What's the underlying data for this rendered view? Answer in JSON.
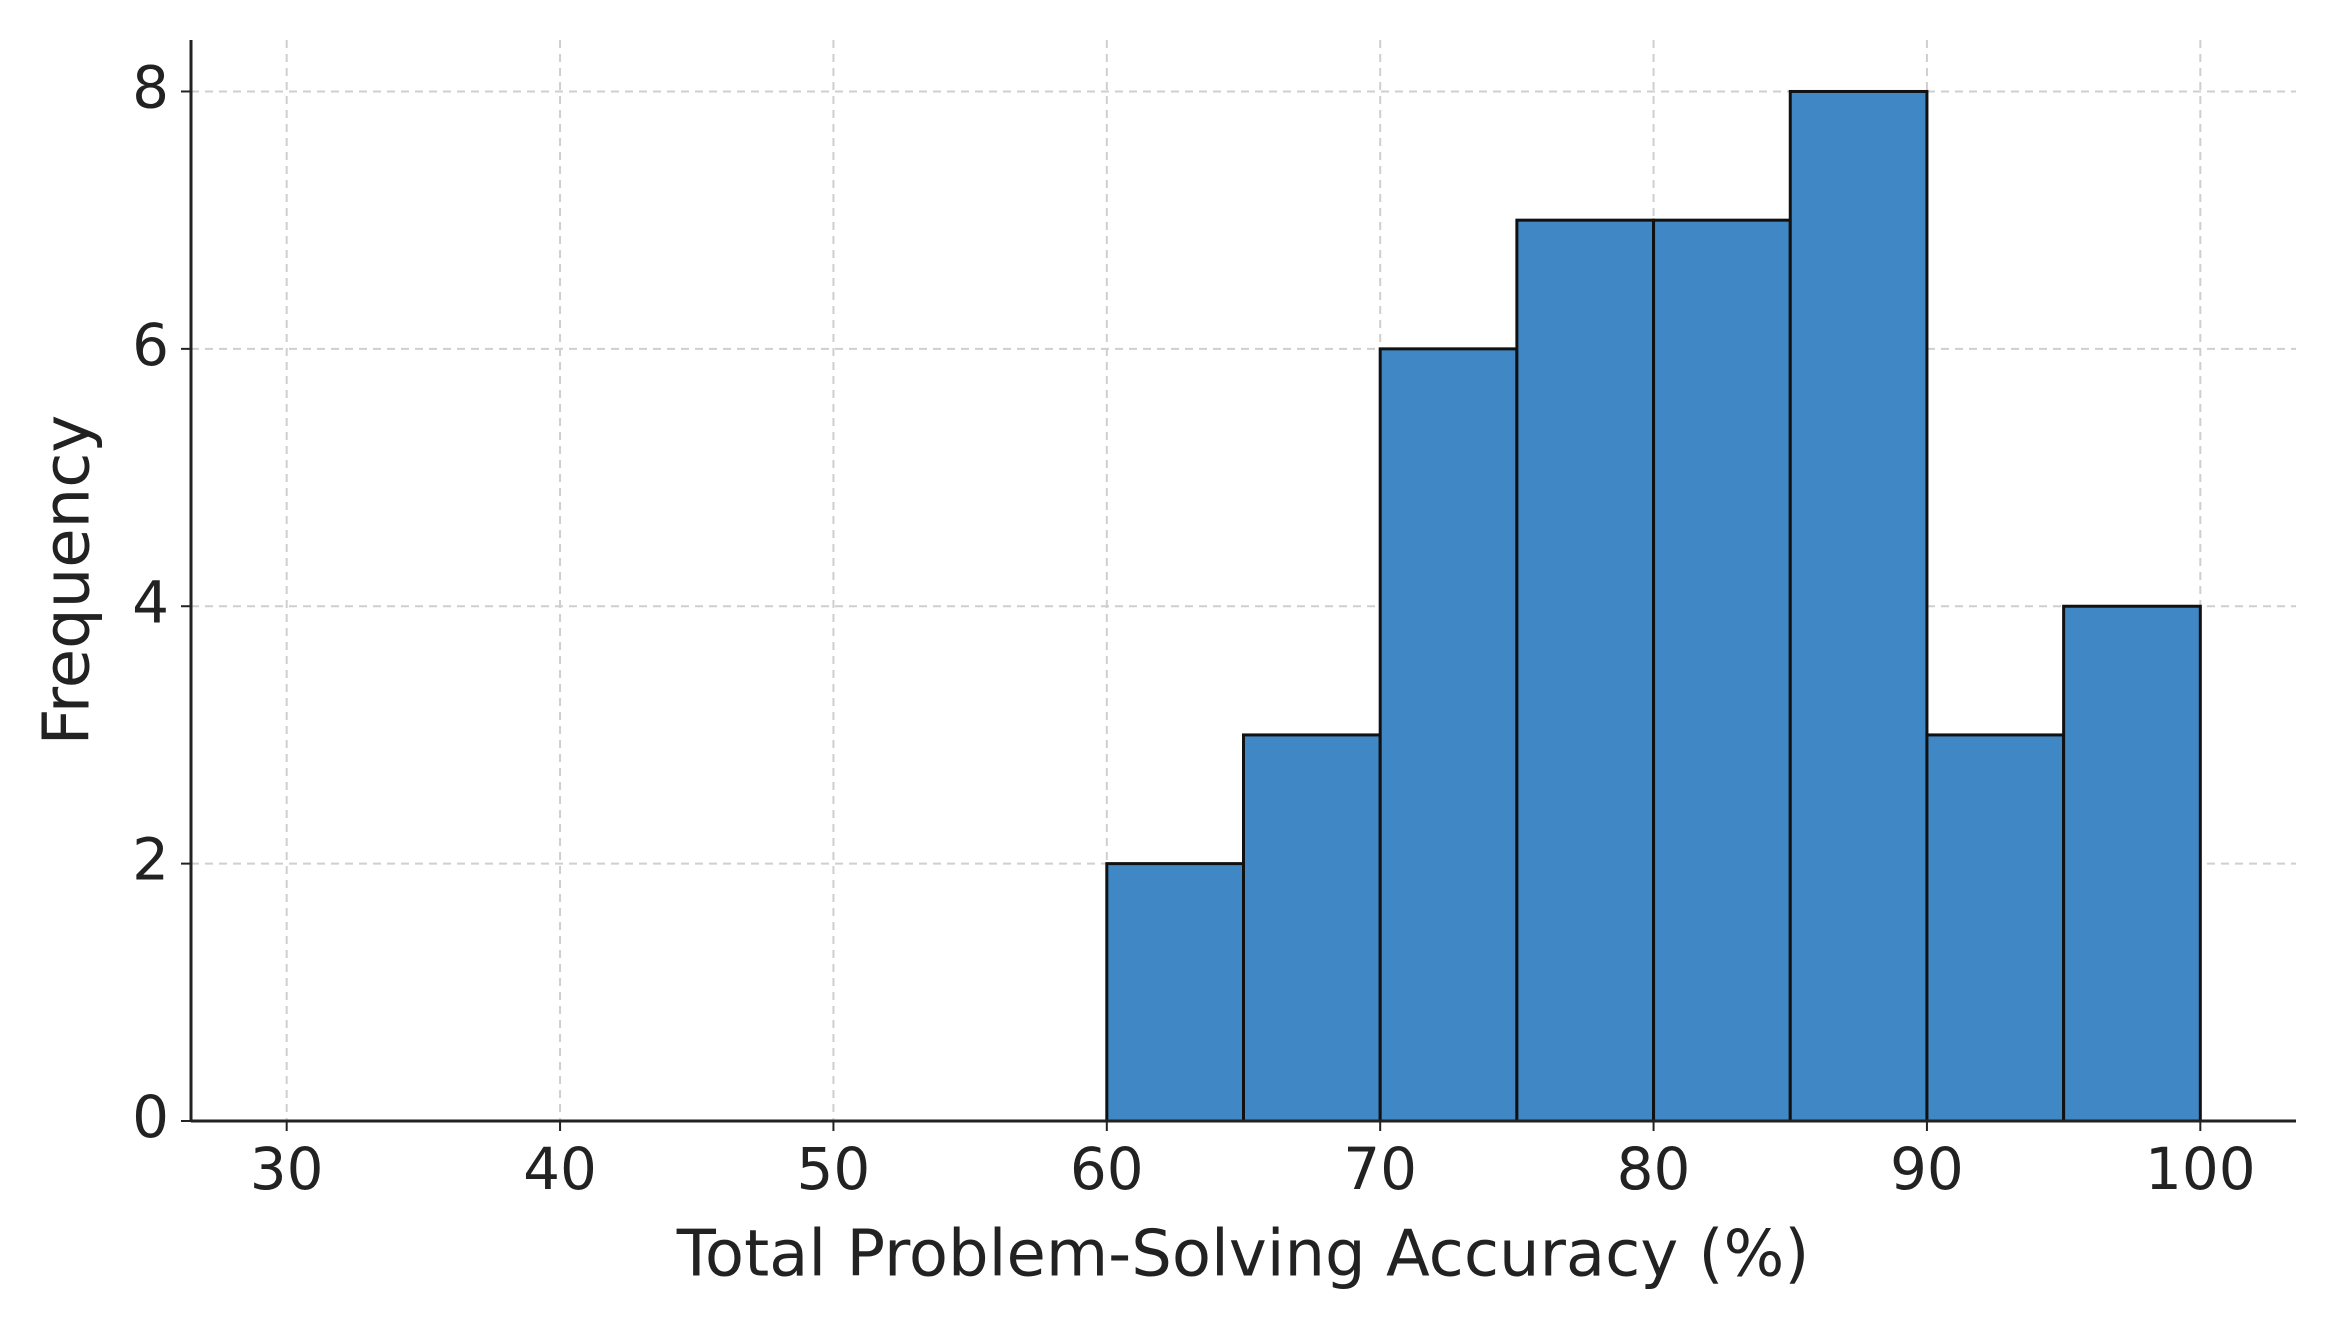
{
  "chart_data": {
    "type": "histogram",
    "x_label": "Total Problem-Solving Accuracy (%)",
    "y_label": "Frequency",
    "bins": [
      60,
      65,
      70,
      75,
      80,
      85,
      90,
      95,
      100
    ],
    "values": [
      2,
      3,
      6,
      7,
      7,
      8,
      3,
      4
    ],
    "color": "#3f88c5",
    "edge_color": "#111111",
    "xlim": [
      26.5,
      103.5
    ],
    "xticks": [
      30,
      40,
      50,
      60,
      70,
      80,
      90,
      100
    ],
    "ylim": [
      0,
      8.4
    ],
    "yticks": [
      0,
      2,
      4,
      6,
      8
    ],
    "grid": true
  }
}
